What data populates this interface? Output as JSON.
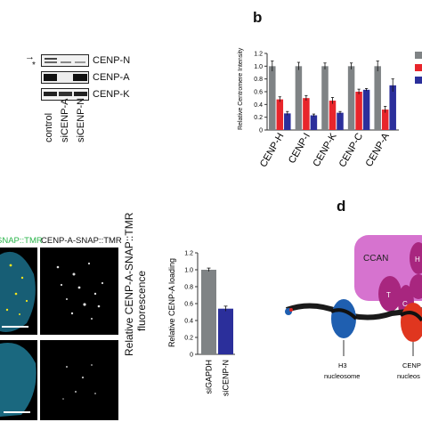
{
  "figure": {
    "panel_b_letter": "b",
    "panel_d_letter": "d"
  },
  "western": {
    "rows": [
      "CENP-N",
      "CENP-A",
      "CENP-K"
    ],
    "lanes": [
      "control",
      "siCENP-A",
      "siCENP-N"
    ],
    "arrow_marker": "→",
    "star_marker": "*"
  },
  "micro": {
    "col1_label": "SNAP::TMR",
    "col2_label": "CENP-A-SNAP::TMR",
    "ylabel_line1": "Relative CENP-A-SNAP::TMR",
    "ylabel_line2": "fluorescence"
  },
  "diagram": {
    "ccan_label": "CCAN",
    "letter_t": "T",
    "letter_c": "C",
    "letter_h": "H",
    "h3_line1": "H3",
    "h3_line2": "nucleosome",
    "cenp_line1": "CENP",
    "cenp_line2": "nucleos"
  },
  "colors": {
    "grey": "#7f8385",
    "red": "#e8252b",
    "blue": "#2b2f9b",
    "ccan": "#d673cf",
    "ccan_dark": "#a8267f"
  },
  "chart_data": [
    {
      "type": "bar",
      "ylabel": "Relative Centromere Intensity",
      "ylim": [
        0,
        1.2
      ],
      "yticks": [
        "0",
        "0.2",
        "0.4",
        "0.6",
        "0.8",
        "1.0",
        "1.2"
      ],
      "categories": [
        "CENP-H",
        "CENP-I",
        "CENP-K",
        "CENP-C",
        "CENP-A"
      ],
      "series": [
        {
          "values": [
            1.0,
            1.0,
            1.0,
            1.0,
            1.0
          ],
          "errors": [
            0.08,
            0.06,
            0.05,
            0.05,
            0.08
          ],
          "color": "#7f8385"
        },
        {
          "values": [
            0.48,
            0.5,
            0.46,
            0.6,
            0.32
          ],
          "errors": [
            0.04,
            0.04,
            0.05,
            0.04,
            0.05
          ],
          "color": "#e8252b"
        },
        {
          "values": [
            0.26,
            0.23,
            0.27,
            0.63,
            0.7
          ],
          "errors": [
            0.03,
            0.02,
            0.02,
            0.02,
            0.1
          ],
          "color": "#2b2f9b"
        }
      ],
      "legend": "top-right"
    },
    {
      "type": "bar",
      "ylabel": "Relative CENP-A loading",
      "ylim": [
        0,
        1.2
      ],
      "yticks": [
        "0",
        "0.2",
        "0.4",
        "0.6",
        "0.8",
        "1.0",
        "1.2"
      ],
      "categories": [
        "siGAPDH",
        "siCENP-N"
      ],
      "values": [
        1.0,
        0.54
      ],
      "errors": [
        0.02,
        0.03
      ],
      "colors": [
        "#7f8385",
        "#2b2f9b"
      ]
    }
  ]
}
